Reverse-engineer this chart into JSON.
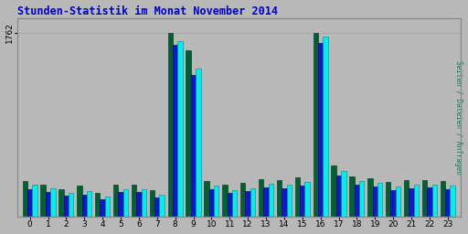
{
  "title": "Stunden-Statistik im Monat November 2014",
  "ylabel_right": "Seiten / Dateien / Anfragen",
  "ytick_label": "1762",
  "hours": [
    0,
    1,
    2,
    3,
    4,
    5,
    6,
    7,
    8,
    9,
    10,
    11,
    12,
    13,
    14,
    15,
    16,
    17,
    18,
    19,
    20,
    21,
    22,
    23
  ],
  "seiten": [
    310,
    270,
    230,
    250,
    195,
    265,
    265,
    210,
    1680,
    1420,
    295,
    260,
    275,
    320,
    305,
    335,
    1720,
    440,
    345,
    325,
    290,
    310,
    310,
    295
  ],
  "dateien": [
    265,
    240,
    205,
    215,
    168,
    235,
    235,
    185,
    1640,
    1360,
    265,
    232,
    248,
    285,
    270,
    298,
    1660,
    395,
    308,
    288,
    255,
    275,
    282,
    262
  ],
  "anfragen": [
    345,
    308,
    265,
    295,
    228,
    308,
    308,
    255,
    1755,
    1595,
    340,
    305,
    322,
    362,
    350,
    378,
    1762,
    488,
    385,
    368,
    330,
    352,
    352,
    340
  ],
  "color_seiten": "#00EEEE",
  "color_dateien": "#1515CC",
  "color_anfragen": "#006030",
  "background_plot": "#B8B8B8",
  "background_fig": "#B8B8B8",
  "title_color": "#0000CC",
  "ylabel_color": "#008060",
  "grid_color": "#A8A8A8",
  "bar_width": 0.27,
  "ylim": [
    0,
    1900
  ]
}
